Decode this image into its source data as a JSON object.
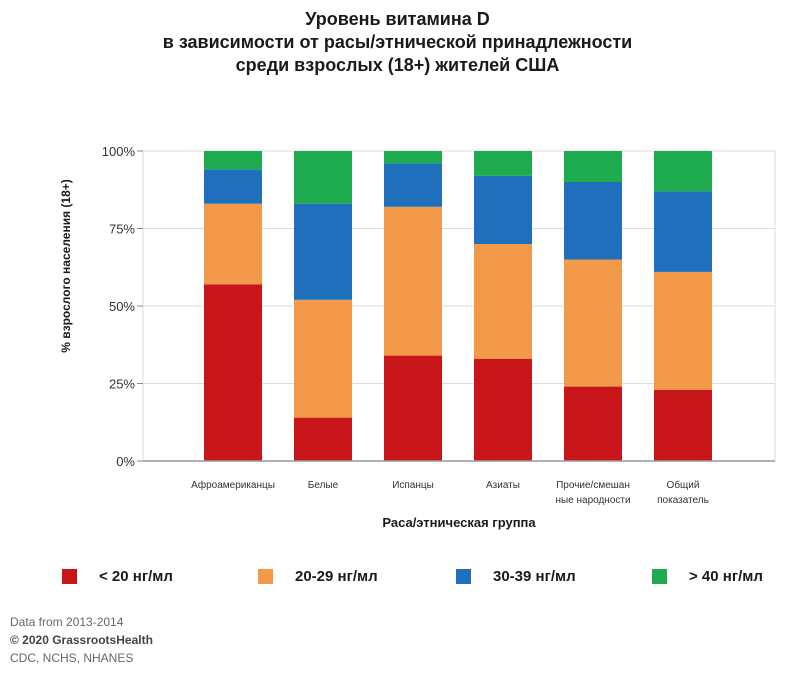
{
  "title_lines": [
    "Уровень витамина D",
    "в зависимости от расы/этнической принадлежности",
    "среди взрослых (18+) жителей США"
  ],
  "footer": {
    "line1": "Data from 2013-2014",
    "line2": "© 2020 GrassrootsHealth",
    "line3": "CDC, NCHS, NHANES"
  },
  "colors": {
    "lt20": "#c8151a",
    "20to29": "#f2994a",
    "30to39": "#1f6fbd",
    "gt40": "#1eaa4f",
    "grid": "#dddddd",
    "axis": "#999999"
  },
  "chart_data": {
    "type": "bar",
    "stacked": true,
    "xlabel": "Раса/этническая группа",
    "ylabel": "% взрослого населения (18+)",
    "ylim": [
      0,
      100
    ],
    "yticks": [
      "0%",
      "25%",
      "50%",
      "75%",
      "100%"
    ],
    "grid": true,
    "legend_position": "bottom",
    "categories": [
      [
        "Афроамериканцы"
      ],
      [
        "Белые"
      ],
      [
        "Испанцы"
      ],
      [
        "Азиаты"
      ],
      [
        "Прочие/смешан",
        "ные народности"
      ],
      [
        "Общий",
        "показатель"
      ]
    ],
    "series": [
      {
        "name": "< 20 нг/мл",
        "color_key": "lt20",
        "values": [
          57,
          14,
          34,
          33,
          24,
          23
        ]
      },
      {
        "name": "20-29 нг/мл",
        "color_key": "20to29",
        "values": [
          26,
          38,
          48,
          37,
          41,
          38
        ]
      },
      {
        "name": "30-39 нг/мл",
        "color_key": "30to39",
        "values": [
          11,
          31,
          14,
          22,
          25,
          26
        ]
      },
      {
        "name": "> 40 нг/мл",
        "color_key": "gt40",
        "values": [
          6,
          17,
          4,
          8,
          10,
          13
        ]
      }
    ]
  }
}
